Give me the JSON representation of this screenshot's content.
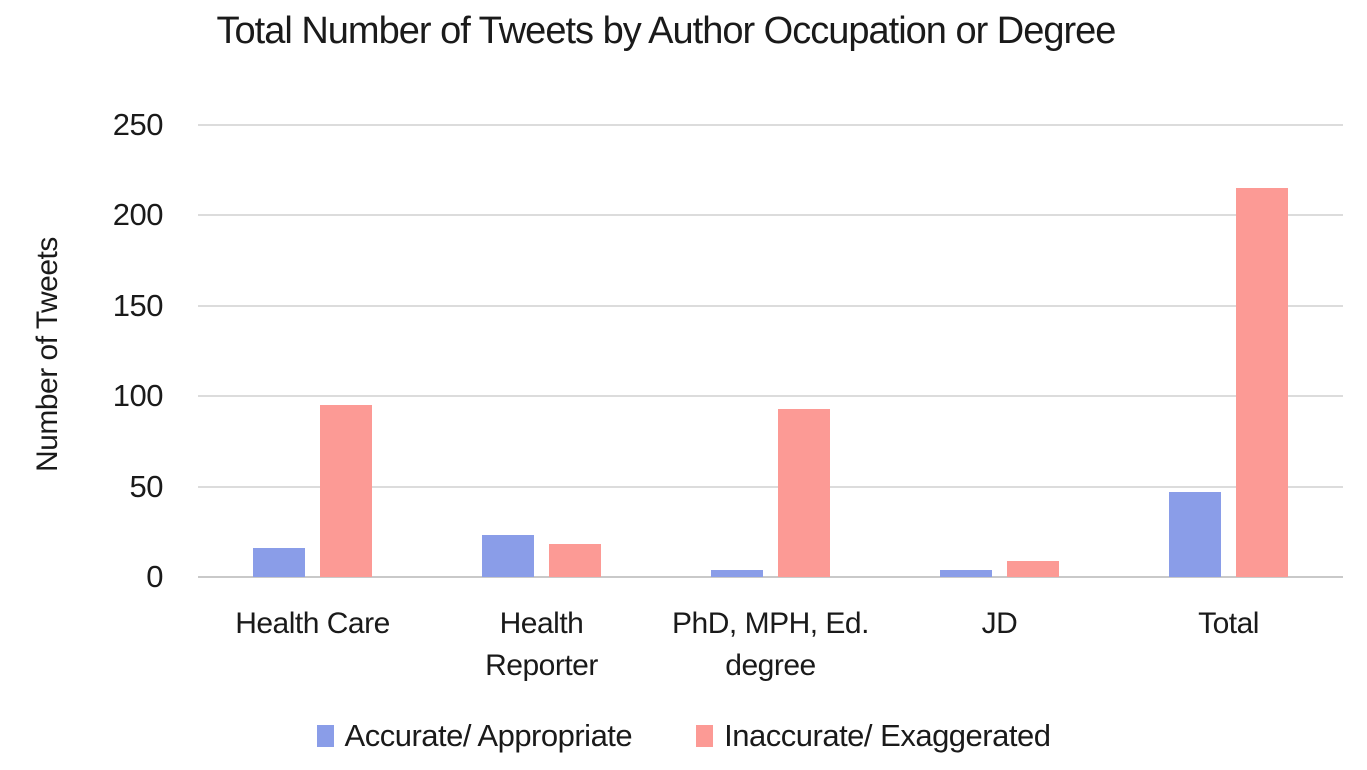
{
  "page": {
    "background_color": "#FFFFFF",
    "text_color": "#1A1A1A"
  },
  "chart_data": {
    "type": "bar",
    "title": "Total Number of Tweets by Author Occupation or Degree",
    "xlabel": "",
    "ylabel": "Number of Tweets",
    "categories": [
      "Health Care",
      "Health Reporter",
      "PhD, MPH, Ed. degree",
      "JD",
      "Total"
    ],
    "category_label_lines": [
      [
        "Health Care"
      ],
      [
        "Health",
        "Reporter"
      ],
      [
        "PhD, MPH, Ed.",
        "degree"
      ],
      [
        "JD"
      ],
      [
        "Total"
      ]
    ],
    "series": [
      {
        "name": "Accurate/ Appropriate",
        "color": "#8A9DE8",
        "values": [
          16,
          23,
          4,
          4,
          47
        ]
      },
      {
        "name": "Inaccurate/ Exaggerated",
        "color": "#FC9A95",
        "values": [
          95,
          18,
          93,
          9,
          215
        ]
      }
    ],
    "yticks": [
      0,
      50,
      100,
      150,
      200,
      250
    ],
    "ylim": [
      0,
      250
    ],
    "grid": true,
    "gridline_color": "#DCDCDC",
    "baseline_color": "#C9C9C9",
    "legend_position": "bottom"
  }
}
